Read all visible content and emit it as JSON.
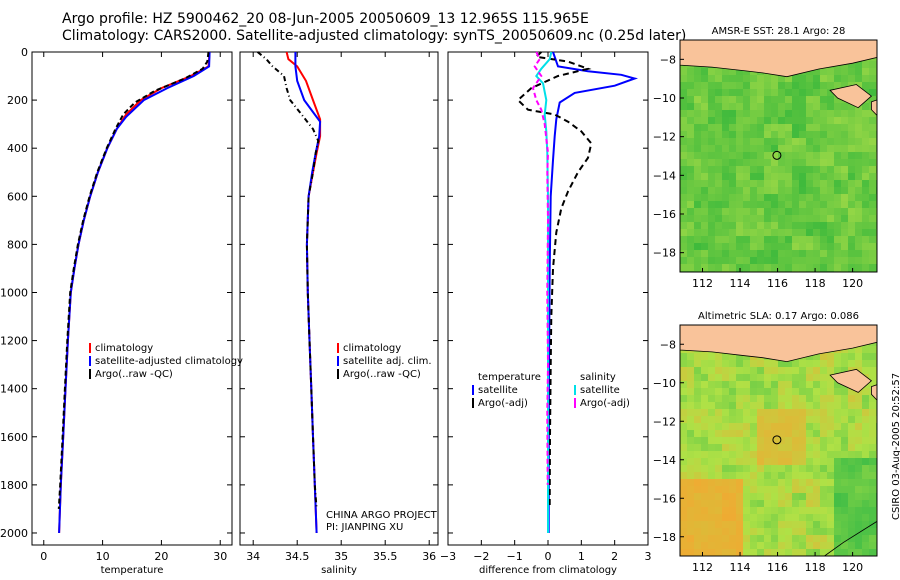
{
  "header": {
    "line1": "Argo profile: HZ 5900462_20 08-Jun-2005 20050609_13 12.965S 115.965E",
    "line2": "Climatology: CARS2000. Satellite-adjusted climatology: synTS_20050609.nc (0.25d later)"
  },
  "credit": "CSIRO 03-Aug-2005 20:52:57",
  "project_note": [
    "CHINA ARGO PROJECT",
    "PI: JIANPING XU"
  ],
  "colors": {
    "climatology": "#ff0000",
    "satellite": "#0000ff",
    "argo": "#000000",
    "cyan": "#00e0e8",
    "magenta": "#ff00ff",
    "land": "#f9c39a"
  },
  "chart_data": [
    {
      "type": "line",
      "name": "temperature-panel",
      "xlabel": "temperature",
      "ylabel": "",
      "xlim": [
        -2,
        32
      ],
      "ylim": [
        2050,
        0
      ],
      "xticks": [
        0,
        10,
        20,
        30
      ],
      "yticks": [
        0,
        200,
        400,
        600,
        800,
        1000,
        1200,
        1400,
        1600,
        1800,
        2000
      ],
      "legend": {
        "position": "bottom-right",
        "entries": [
          "climatology",
          "satellite-adjusted climatology",
          "Argo(..raw -QC)"
        ]
      },
      "series": [
        {
          "name": "climatology",
          "color": "#ff0000",
          "dash": "",
          "points": [
            [
              28.2,
              0
            ],
            [
              28.0,
              60
            ],
            [
              25,
              100
            ],
            [
              20,
              150
            ],
            [
              16.5,
              200
            ],
            [
              14,
              260
            ],
            [
              12.4,
              320
            ],
            [
              10.8,
              400
            ],
            [
              9.2,
              500
            ],
            [
              7.9,
              600
            ],
            [
              6.8,
              700
            ],
            [
              5.9,
              800
            ],
            [
              5.2,
              900
            ],
            [
              4.6,
              1000
            ],
            [
              4.1,
              1200
            ],
            [
              3.7,
              1400
            ],
            [
              3.3,
              1600
            ],
            [
              2.9,
              1800
            ],
            [
              2.6,
              2000
            ]
          ]
        },
        {
          "name": "satellite-adjusted climatology",
          "color": "#0000ff",
          "dash": "",
          "points": [
            [
              28.2,
              0
            ],
            [
              28.1,
              60
            ],
            [
              25.5,
              100
            ],
            [
              21,
              150
            ],
            [
              17,
              200
            ],
            [
              14,
              270
            ],
            [
              12.4,
              320
            ],
            [
              10.8,
              400
            ],
            [
              9.2,
              500
            ],
            [
              7.9,
              600
            ],
            [
              6.8,
              700
            ],
            [
              5.9,
              800
            ],
            [
              5.2,
              900
            ],
            [
              4.6,
              1000
            ],
            [
              4.1,
              1200
            ],
            [
              3.7,
              1400
            ],
            [
              3.3,
              1600
            ],
            [
              2.9,
              1800
            ],
            [
              2.6,
              2000
            ]
          ]
        },
        {
          "name": "Argo(..raw -QC)",
          "color": "#000000",
          "dash": "5,3",
          "points": [
            [
              28.0,
              0
            ],
            [
              27.8,
              40
            ],
            [
              27,
              70
            ],
            [
              24,
              110
            ],
            [
              19,
              160
            ],
            [
              15.5,
              210
            ],
            [
              13.5,
              260
            ],
            [
              12.2,
              320
            ],
            [
              10.7,
              400
            ],
            [
              9.1,
              500
            ],
            [
              7.8,
              600
            ],
            [
              6.7,
              700
            ],
            [
              5.8,
              800
            ],
            [
              5.1,
              900
            ],
            [
              4.5,
              1000
            ],
            [
              4.0,
              1200
            ],
            [
              3.6,
              1400
            ],
            [
              3.2,
              1600
            ],
            [
              2.8,
              1800
            ],
            [
              2.55,
              1900
            ]
          ]
        }
      ]
    },
    {
      "type": "line",
      "name": "salinity-panel",
      "xlabel": "salinity",
      "xlim": [
        33.85,
        36.1
      ],
      "ylim": [
        2050,
        0
      ],
      "xticks": [
        34,
        34.5,
        35,
        35.5,
        36
      ],
      "legend": {
        "position": "bottom-right",
        "entries": [
          "climatology",
          "satellite adj. clim.",
          "Argo(..raw -QC)"
        ]
      },
      "series": [
        {
          "name": "climatology",
          "color": "#ff0000",
          "dash": "",
          "points": [
            [
              34.38,
              0
            ],
            [
              34.4,
              30
            ],
            [
              34.5,
              60
            ],
            [
              34.6,
              120
            ],
            [
              34.68,
              200
            ],
            [
              34.76,
              280
            ],
            [
              34.76,
              350
            ],
            [
              34.72,
              420
            ],
            [
              34.68,
              500
            ],
            [
              34.63,
              600
            ],
            [
              34.61,
              800
            ],
            [
              34.62,
              1000
            ],
            [
              34.64,
              1200
            ],
            [
              34.66,
              1400
            ],
            [
              34.68,
              1600
            ],
            [
              34.7,
              1800
            ],
            [
              34.72,
              2000
            ]
          ]
        },
        {
          "name": "satellite adj. clim.",
          "color": "#0000ff",
          "dash": "",
          "points": [
            [
              34.48,
              0
            ],
            [
              34.48,
              30
            ],
            [
              34.48,
              60
            ],
            [
              34.5,
              120
            ],
            [
              34.58,
              200
            ],
            [
              34.7,
              260
            ],
            [
              34.76,
              290
            ],
            [
              34.75,
              350
            ],
            [
              34.71,
              420
            ],
            [
              34.67,
              500
            ],
            [
              34.63,
              600
            ],
            [
              34.61,
              800
            ],
            [
              34.62,
              1000
            ],
            [
              34.64,
              1200
            ],
            [
              34.66,
              1400
            ],
            [
              34.68,
              1600
            ],
            [
              34.7,
              1800
            ],
            [
              34.72,
              2000
            ]
          ]
        },
        {
          "name": "Argo(..raw -QC)",
          "color": "#000000",
          "dash": "5,3,1,3",
          "points": [
            [
              34.05,
              0
            ],
            [
              34.15,
              30
            ],
            [
              34.22,
              60
            ],
            [
              34.35,
              100
            ],
            [
              34.38,
              150
            ],
            [
              34.42,
              200
            ],
            [
              34.55,
              260
            ],
            [
              34.68,
              320
            ],
            [
              34.74,
              370
            ],
            [
              34.71,
              420
            ],
            [
              34.68,
              500
            ],
            [
              34.63,
              600
            ],
            [
              34.61,
              800
            ],
            [
              34.62,
              1000
            ],
            [
              34.64,
              1200
            ],
            [
              34.66,
              1400
            ],
            [
              34.68,
              1600
            ],
            [
              34.7,
              1800
            ],
            [
              34.72,
              1900
            ]
          ]
        }
      ]
    },
    {
      "type": "line",
      "name": "difference-panel",
      "xlabel": "difference from climatology",
      "xlim": [
        -3,
        3
      ],
      "ylim": [
        2050,
        0
      ],
      "xticks": [
        -3,
        -2,
        -1,
        0,
        1,
        2,
        3
      ],
      "legend": {
        "position": "bottom",
        "entries": [
          "temperature",
          "satellite",
          "Argo(-adj)",
          "salinity",
          "satellite",
          "Argo(-adj)"
        ]
      },
      "series": [
        {
          "name": "temperature satellite",
          "color": "#0000ff",
          "dash": "",
          "points": [
            [
              0.15,
              0
            ],
            [
              0.3,
              60
            ],
            [
              1.2,
              80
            ],
            [
              2.2,
              95
            ],
            [
              2.6,
              110
            ],
            [
              2.0,
              140
            ],
            [
              0.8,
              170
            ],
            [
              0.35,
              210
            ],
            [
              0.25,
              280
            ],
            [
              0.2,
              350
            ],
            [
              0.15,
              450
            ],
            [
              0.08,
              600
            ],
            [
              0.05,
              900
            ],
            [
              0.03,
              1300
            ],
            [
              0.02,
              2000
            ]
          ]
        },
        {
          "name": "temperature Argo(-adj)",
          "color": "#000000",
          "dash": "6,4",
          "points": [
            [
              -0.2,
              0
            ],
            [
              -0.35,
              20
            ],
            [
              0.6,
              40
            ],
            [
              1.2,
              70
            ],
            [
              0.3,
              100
            ],
            [
              -0.5,
              150
            ],
            [
              -0.9,
              200
            ],
            [
              -0.6,
              240
            ],
            [
              0.2,
              260
            ],
            [
              0.6,
              290
            ],
            [
              1.0,
              330
            ],
            [
              1.3,
              380
            ],
            [
              1.2,
              440
            ],
            [
              0.9,
              500
            ],
            [
              0.6,
              580
            ],
            [
              0.4,
              650
            ],
            [
              0.25,
              750
            ],
            [
              0.15,
              900
            ],
            [
              0.1,
              1100
            ],
            [
              0.08,
              1300
            ],
            [
              0.06,
              1600
            ],
            [
              0.05,
              1900
            ]
          ]
        },
        {
          "name": "salinity satellite",
          "color": "#00e0e8",
          "dash": "",
          "points": [
            [
              0.1,
              0
            ],
            [
              0.05,
              30
            ],
            [
              -0.2,
              70
            ],
            [
              -0.35,
              100
            ],
            [
              -0.15,
              130
            ],
            [
              -0.05,
              200
            ],
            [
              -0.1,
              260
            ],
            [
              -0.05,
              330
            ],
            [
              -0.02,
              420
            ],
            [
              0.0,
              600
            ],
            [
              0.0,
              900
            ],
            [
              0.0,
              1300
            ],
            [
              0.0,
              2000
            ]
          ]
        },
        {
          "name": "salinity Argo(-adj)",
          "color": "#ff00ff",
          "dash": "5,3",
          "points": [
            [
              -0.35,
              0
            ],
            [
              -0.25,
              30
            ],
            [
              -0.4,
              60
            ],
            [
              -0.2,
              100
            ],
            [
              -0.45,
              150
            ],
            [
              -0.35,
              200
            ],
            [
              -0.2,
              240
            ],
            [
              -0.1,
              300
            ],
            [
              -0.05,
              360
            ],
            [
              0.0,
              420
            ],
            [
              -0.02,
              500
            ],
            [
              0.0,
              700
            ],
            [
              -0.02,
              1000
            ],
            [
              0.0,
              1300
            ],
            [
              -0.02,
              1500
            ],
            [
              -0.01,
              1800
            ]
          ]
        }
      ]
    },
    {
      "type": "heatmap",
      "name": "sst-map",
      "title": "AMSR-E SST: 28.1 Argo: 28",
      "xlim": [
        110.8,
        121.3
      ],
      "ylim": [
        -19,
        -7
      ],
      "xticks": [
        112,
        114,
        116,
        118,
        120
      ],
      "yticks": [
        -8,
        -10,
        -12,
        -14,
        -16,
        -18
      ],
      "argo_position": [
        115.965,
        -12.965
      ]
    },
    {
      "type": "heatmap",
      "name": "sla-map",
      "title": "Altimetric SLA: 0.17 Argo: 0.086",
      "xlim": [
        110.8,
        121.3
      ],
      "ylim": [
        -19,
        -7
      ],
      "xticks": [
        112,
        114,
        116,
        118,
        120
      ],
      "yticks": [
        -8,
        -10,
        -12,
        -14,
        -16,
        -18
      ],
      "argo_position": [
        115.965,
        -12.965
      ]
    }
  ]
}
